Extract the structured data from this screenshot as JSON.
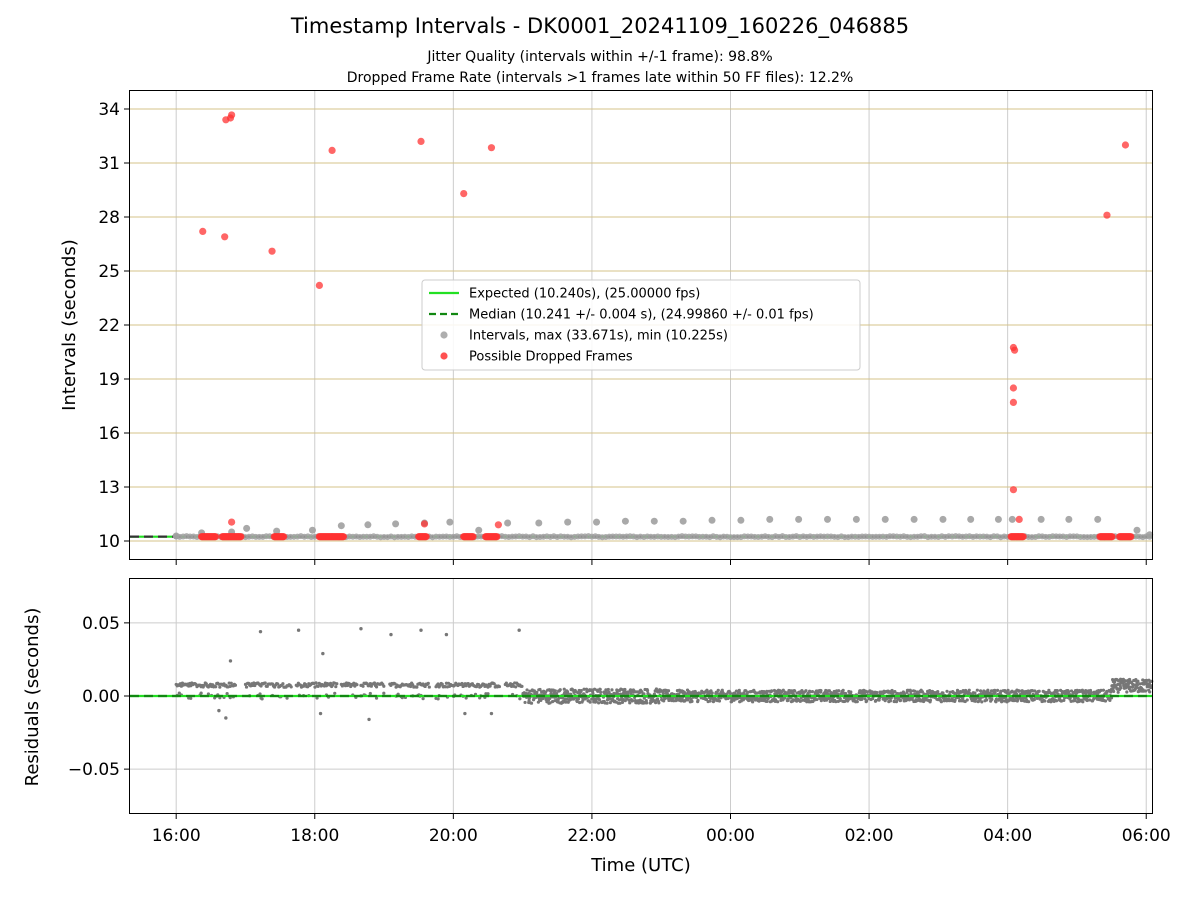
{
  "figure": {
    "title": "Timestamp Intervals - DK0001_20241109_160226_046885",
    "subtitle_1": "Jitter Quality (intervals within +/-1 frame): 98.8%",
    "subtitle_2": "Dropped Frame Rate (intervals >1 frames late within 50 FF files): 12.2%"
  },
  "colors": {
    "expected_line": "#22e022",
    "median_line": "#118811",
    "intervals_points": "#a0a0a0",
    "dropped_points": "#ff3333",
    "residual_points": "#777777",
    "hgrid_top": "#d4c38a",
    "grid": "#cccccc"
  },
  "chart_data": [
    {
      "type": "scatter",
      "panel": "intervals",
      "xlabel": "",
      "ylabel": "Intervals (seconds)",
      "x_range": [
        "15:20",
        "06:05"
      ],
      "ylim": [
        9.0,
        35.0
      ],
      "y_ticks": [
        10,
        13,
        16,
        19,
        22,
        25,
        28,
        31,
        34
      ],
      "grid": true,
      "legend_placement": "center",
      "legend": [
        {
          "label": "Expected (10.240s), (25.00000 fps)",
          "kind": "solid-line",
          "color": "#22e022"
        },
        {
          "label": "Median (10.241 +/- 0.004 s), (24.99860 +/- 0.01 fps)",
          "kind": "dashed-line",
          "color": "#118811"
        },
        {
          "label": "Intervals, max (33.671s), min (10.225s)",
          "kind": "marker",
          "color": "#a0a0a0"
        },
        {
          "label": "Possible Dropped Frames",
          "kind": "marker",
          "color": "#ff3333"
        }
      ],
      "lines": {
        "expected": 10.24,
        "median": 10.241
      },
      "series": [
        {
          "name": "Intervals, max (33.671s), min (10.225s)",
          "points": [
            [
              "16:00",
              10.28
            ],
            [
              "16:22",
              10.45
            ],
            [
              "16:48",
              10.5
            ],
            [
              "17:01",
              10.7
            ],
            [
              "17:27",
              10.55
            ],
            [
              "17:58",
              10.6
            ],
            [
              "18:23",
              10.85
            ],
            [
              "18:46",
              10.9
            ],
            [
              "19:10",
              10.95
            ],
            [
              "19:35",
              11.0
            ],
            [
              "19:57",
              11.05
            ],
            [
              "20:22",
              10.6
            ],
            [
              "20:47",
              11.0
            ],
            [
              "21:14",
              11.0
            ],
            [
              "21:39",
              11.05
            ],
            [
              "22:04",
              11.05
            ],
            [
              "22:29",
              11.1
            ],
            [
              "22:54",
              11.1
            ],
            [
              "23:19",
              11.1
            ],
            [
              "23:44",
              11.15
            ],
            [
              "00:09",
              11.15
            ],
            [
              "00:34",
              11.2
            ],
            [
              "00:59",
              11.2
            ],
            [
              "01:24",
              11.2
            ],
            [
              "01:49",
              11.2
            ],
            [
              "02:14",
              11.2
            ],
            [
              "02:39",
              11.2
            ],
            [
              "03:04",
              11.2
            ],
            [
              "03:28",
              11.2
            ],
            [
              "03:52",
              11.2
            ],
            [
              "04:04",
              11.2
            ],
            [
              "04:29",
              11.2
            ],
            [
              "04:53",
              11.2
            ],
            [
              "05:18",
              11.2
            ],
            [
              "05:52",
              10.6
            ],
            [
              "06:03",
              10.35
            ]
          ]
        },
        {
          "name": "Possible Dropped Frames",
          "points": [
            [
              "16:23",
              27.2
            ],
            [
              "16:42",
              26.9
            ],
            [
              "16:43",
              33.4
            ],
            [
              "16:47",
              33.5
            ],
            [
              "16:48",
              33.67
            ],
            [
              "16:48",
              11.05
            ],
            [
              "17:23",
              26.1
            ],
            [
              "18:04",
              24.2
            ],
            [
              "18:15",
              31.7
            ],
            [
              "19:32",
              32.2
            ],
            [
              "19:35",
              10.95
            ],
            [
              "20:09",
              29.3
            ],
            [
              "20:33",
              31.85
            ],
            [
              "20:39",
              10.9
            ],
            [
              "04:05",
              20.75
            ],
            [
              "04:06",
              20.6
            ],
            [
              "04:05",
              18.5
            ],
            [
              "04:05",
              17.7
            ],
            [
              "04:05",
              12.85
            ],
            [
              "04:10",
              11.2
            ],
            [
              "05:26",
              28.1
            ],
            [
              "05:42",
              32.0
            ]
          ],
          "clusters_at_expected": [
            [
              "16:22",
              "16:34"
            ],
            [
              "16:40",
              "16:56"
            ],
            [
              "17:25",
              "17:33"
            ],
            [
              "18:04",
              "18:25"
            ],
            [
              "19:30",
              "19:37"
            ],
            [
              "20:09",
              "20:17"
            ],
            [
              "20:28",
              "20:38"
            ],
            [
              "04:03",
              "04:14"
            ],
            [
              "05:20",
              "05:31"
            ],
            [
              "05:37",
              "05:47"
            ]
          ]
        }
      ]
    },
    {
      "type": "scatter",
      "panel": "residuals",
      "xlabel": "Time (UTC)",
      "ylabel": "Residuals (seconds)",
      "x_ticks": [
        "16:00",
        "18:00",
        "20:00",
        "22:00",
        "00:00",
        "02:00",
        "04:00",
        "06:00"
      ],
      "ylim": [
        -0.08,
        0.08
      ],
      "y_ticks": [
        "0.05",
        "0.00",
        "−0.05"
      ],
      "y_tick_values": [
        0.05,
        0.0,
        -0.05
      ],
      "grid": true,
      "lines": {
        "expected": 0.0
      },
      "series": [
        {
          "name": "Residuals",
          "description": "dense band: ~+0.008 s from 16:00 to 21:00 with dips to ~0; near 0 (±0.005 s) from 21:00 to 05:30; rising to ~+0.008 s after 05:30",
          "outliers": [
            [
              "16:47",
              0.024
            ],
            [
              "17:13",
              0.044
            ],
            [
              "17:46",
              0.045
            ],
            [
              "18:07",
              0.029
            ],
            [
              "18:40",
              0.046
            ],
            [
              "19:06",
              0.042
            ],
            [
              "19:32",
              0.045
            ],
            [
              "19:54",
              0.042
            ],
            [
              "20:57",
              0.045
            ],
            [
              "18:47",
              -0.016
            ],
            [
              "16:37",
              -0.01
            ],
            [
              "16:43",
              -0.015
            ],
            [
              "18:05",
              -0.012
            ],
            [
              "20:10",
              -0.012
            ],
            [
              "20:33",
              -0.012
            ]
          ]
        }
      ]
    }
  ]
}
